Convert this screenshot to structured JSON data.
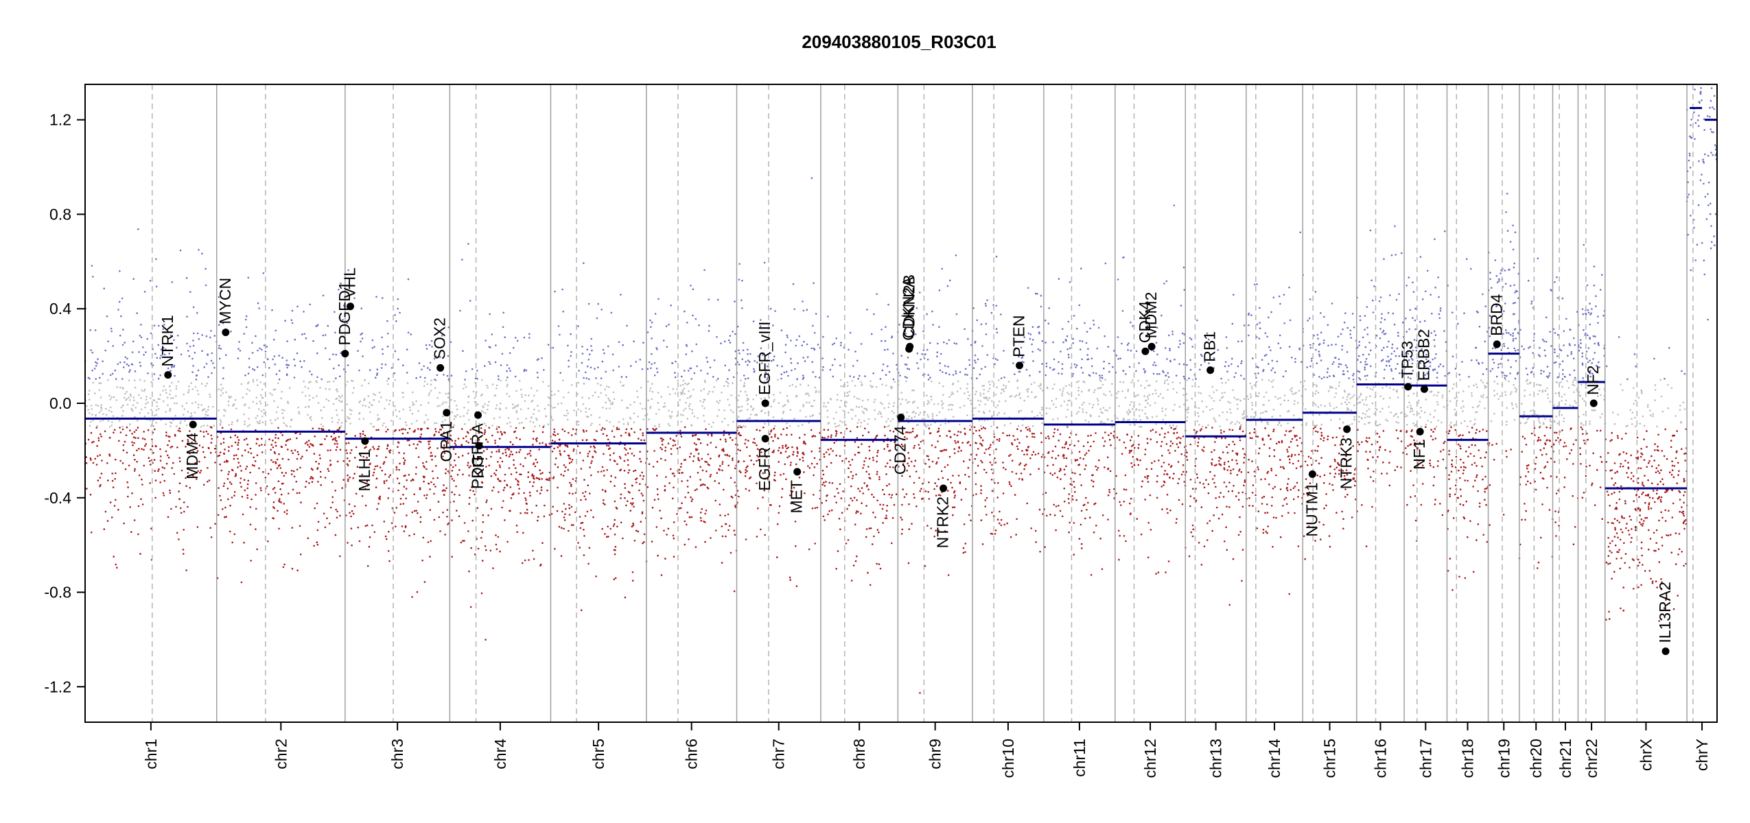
{
  "chart_data": {
    "type": "scatter",
    "title": "209403880105_R03C01",
    "xlabel": "",
    "ylabel": "",
    "ylim": [
      -1.35,
      1.35
    ],
    "y_ticks": [
      "1.2",
      "0.8",
      "0.4",
      "0.0",
      "-0.4",
      "-0.8",
      "-1.2"
    ],
    "y_tick_values": [
      1.2,
      0.8,
      0.4,
      0.0,
      -0.4,
      -0.8,
      -1.2
    ],
    "grid": false,
    "colors": {
      "gain": "#6b6fc4",
      "loss": "#a8191b",
      "neutral": "#bdbdbd",
      "segment": "#00008b",
      "boundary": "#a0a0a0",
      "centromere": "#b3b3b3",
      "gene": "#000000"
    },
    "chromosomes": [
      {
        "name": "chr1",
        "length": 249,
        "centromere": 0.51,
        "segments": [
          {
            "from": 0,
            "to": 1,
            "value": -0.065
          }
        ]
      },
      {
        "name": "chr2",
        "length": 243,
        "centromere": 0.38,
        "segments": [
          {
            "from": 0,
            "to": 1,
            "value": -0.12
          }
        ]
      },
      {
        "name": "chr3",
        "length": 198,
        "centromere": 0.46,
        "segments": [
          {
            "from": 0,
            "to": 1,
            "value": -0.15
          }
        ]
      },
      {
        "name": "chr4",
        "length": 191,
        "centromere": 0.26,
        "segments": [
          {
            "from": 0,
            "to": 1,
            "value": -0.185
          }
        ]
      },
      {
        "name": "chr5",
        "length": 181,
        "centromere": 0.27,
        "segments": [
          {
            "from": 0,
            "to": 1,
            "value": -0.17
          }
        ]
      },
      {
        "name": "chr6",
        "length": 171,
        "centromere": 0.35,
        "segments": [
          {
            "from": 0,
            "to": 1,
            "value": -0.125
          }
        ]
      },
      {
        "name": "chr7",
        "length": 159,
        "centromere": 0.38,
        "segments": [
          {
            "from": 0,
            "to": 1,
            "value": -0.075
          }
        ]
      },
      {
        "name": "chr8",
        "length": 146,
        "centromere": 0.31,
        "segments": [
          {
            "from": 0,
            "to": 1,
            "value": -0.155
          }
        ]
      },
      {
        "name": "chr9",
        "length": 141,
        "centromere": 0.35,
        "segments": [
          {
            "from": 0,
            "to": 1,
            "value": -0.075
          }
        ]
      },
      {
        "name": "chr10",
        "length": 135,
        "centromere": 0.3,
        "segments": [
          {
            "from": 0,
            "to": 1,
            "value": -0.065
          }
        ]
      },
      {
        "name": "chr11",
        "length": 135,
        "centromere": 0.39,
        "segments": [
          {
            "from": 0,
            "to": 1,
            "value": -0.09
          }
        ]
      },
      {
        "name": "chr12",
        "length": 133,
        "centromere": 0.27,
        "segments": [
          {
            "from": 0,
            "to": 1,
            "value": -0.08
          }
        ]
      },
      {
        "name": "chr13",
        "length": 115,
        "centromere": 0.16,
        "segments": [
          {
            "from": 0,
            "to": 1,
            "value": -0.14
          }
        ]
      },
      {
        "name": "chr14",
        "length": 107,
        "centromere": 0.17,
        "segments": [
          {
            "from": 0,
            "to": 1,
            "value": -0.07
          }
        ]
      },
      {
        "name": "chr15",
        "length": 102,
        "centromere": 0.19,
        "segments": [
          {
            "from": 0,
            "to": 1,
            "value": -0.04
          }
        ]
      },
      {
        "name": "chr16",
        "length": 90,
        "centromere": 0.4,
        "segments": [
          {
            "from": 0,
            "to": 1,
            "value": 0.08
          }
        ]
      },
      {
        "name": "chr17",
        "length": 81,
        "centromere": 0.3,
        "segments": [
          {
            "from": 0,
            "to": 1,
            "value": 0.075
          }
        ]
      },
      {
        "name": "chr18",
        "length": 78,
        "centromere": 0.23,
        "segments": [
          {
            "from": 0,
            "to": 1,
            "value": -0.155
          }
        ]
      },
      {
        "name": "chr19",
        "length": 59,
        "centromere": 0.45,
        "segments": [
          {
            "from": 0,
            "to": 1,
            "value": 0.21
          }
        ]
      },
      {
        "name": "chr20",
        "length": 63,
        "centromere": 0.44,
        "segments": [
          {
            "from": 0,
            "to": 1,
            "value": -0.055
          }
        ]
      },
      {
        "name": "chr21",
        "length": 48,
        "centromere": 0.26,
        "segments": [
          {
            "from": 0,
            "to": 1,
            "value": -0.02
          }
        ]
      },
      {
        "name": "chr22",
        "length": 51,
        "centromere": 0.29,
        "segments": [
          {
            "from": 0,
            "to": 1,
            "value": 0.09
          }
        ]
      },
      {
        "name": "chrX",
        "length": 155,
        "centromere": 0.39,
        "segments": [
          {
            "from": 0,
            "to": 1,
            "value": -0.36
          }
        ]
      },
      {
        "name": "chrY",
        "length": 57,
        "centromere": 0.2,
        "segments": [
          {
            "from": 0,
            "to": 0.5,
            "value": 1.25
          },
          {
            "from": 0.5,
            "to": 1,
            "value": 1.2
          }
        ]
      }
    ],
    "genes": [
      {
        "name": "NTRK1",
        "chrom": "chr1",
        "pos": 0.63,
        "value": 0.12,
        "label_side": "above"
      },
      {
        "name": "MDM4",
        "chrom": "chr1",
        "pos": 0.82,
        "value": -0.09,
        "label_side": "below"
      },
      {
        "name": "MYCN",
        "chrom": "chr2",
        "pos": 0.07,
        "value": 0.3,
        "label_side": "above"
      },
      {
        "name": "PDGFD1",
        "chrom": "chr3",
        "pos": 0.0,
        "value": 0.21,
        "label_side": "above"
      },
      {
        "name": "VHL",
        "chrom": "chr3",
        "pos": 0.05,
        "value": 0.41,
        "label_side": "above"
      },
      {
        "name": "MLH1",
        "chrom": "chr3",
        "pos": 0.19,
        "value": -0.16,
        "label_side": "below"
      },
      {
        "name": "SOX2",
        "chrom": "chr3",
        "pos": 0.91,
        "value": 0.15,
        "label_side": "above"
      },
      {
        "name": "OPA1",
        "chrom": "chr3",
        "pos": 0.97,
        "value": -0.04,
        "label_side": "below"
      },
      {
        "name": "PDGFRA",
        "chrom": "chr4",
        "pos": 0.28,
        "value": -0.05,
        "label_side": "below"
      },
      {
        "name": "KIT",
        "chrom": "chr4",
        "pos": 0.29,
        "value": -0.18,
        "label_side": "below"
      },
      {
        "name": "EGFR_vIII",
        "chrom": "chr7",
        "pos": 0.34,
        "value": 0.0,
        "label_side": "above"
      },
      {
        "name": "EGFR",
        "chrom": "chr7",
        "pos": 0.34,
        "value": -0.15,
        "label_side": "below"
      },
      {
        "name": "MET",
        "chrom": "chr7",
        "pos": 0.72,
        "value": -0.29,
        "label_side": "below"
      },
      {
        "name": "CD274",
        "chrom": "chr9",
        "pos": 0.04,
        "value": -0.06,
        "label_side": "below"
      },
      {
        "name": "CDKN2A",
        "chrom": "chr9",
        "pos": 0.15,
        "value": 0.23,
        "label_side": "above"
      },
      {
        "name": "CDKN2B",
        "chrom": "chr9",
        "pos": 0.16,
        "value": 0.24,
        "label_side": "above"
      },
      {
        "name": "NTRK2",
        "chrom": "chr9",
        "pos": 0.61,
        "value": -0.36,
        "label_side": "below"
      },
      {
        "name": "PTEN",
        "chrom": "chr10",
        "pos": 0.66,
        "value": 0.16,
        "label_side": "above"
      },
      {
        "name": "CDK4",
        "chrom": "chr12",
        "pos": 0.43,
        "value": 0.22,
        "label_side": "above"
      },
      {
        "name": "MDM2",
        "chrom": "chr12",
        "pos": 0.52,
        "value": 0.24,
        "label_side": "above"
      },
      {
        "name": "RB1",
        "chrom": "chr13",
        "pos": 0.41,
        "value": 0.14,
        "label_side": "above"
      },
      {
        "name": "NUTM1",
        "chrom": "chr15",
        "pos": 0.18,
        "value": -0.3,
        "label_side": "below"
      },
      {
        "name": "NTRK3",
        "chrom": "chr15",
        "pos": 0.82,
        "value": -0.11,
        "label_side": "below"
      },
      {
        "name": "TP53",
        "chrom": "chr17",
        "pos": 0.09,
        "value": 0.07,
        "label_side": "above"
      },
      {
        "name": "ERBB2",
        "chrom": "chr17",
        "pos": 0.47,
        "value": 0.06,
        "label_side": "above"
      },
      {
        "name": "NF1",
        "chrom": "chr17",
        "pos": 0.37,
        "value": -0.12,
        "label_side": "below"
      },
      {
        "name": "BRD4",
        "chrom": "chr19",
        "pos": 0.28,
        "value": 0.25,
        "label_side": "above"
      },
      {
        "name": "NF2",
        "chrom": "chr22",
        "pos": 0.58,
        "value": 0.0,
        "label_side": "above"
      },
      {
        "name": "IL13RA2",
        "chrom": "chrX",
        "pos": 0.74,
        "value": -1.05,
        "label_side": "above"
      }
    ]
  }
}
